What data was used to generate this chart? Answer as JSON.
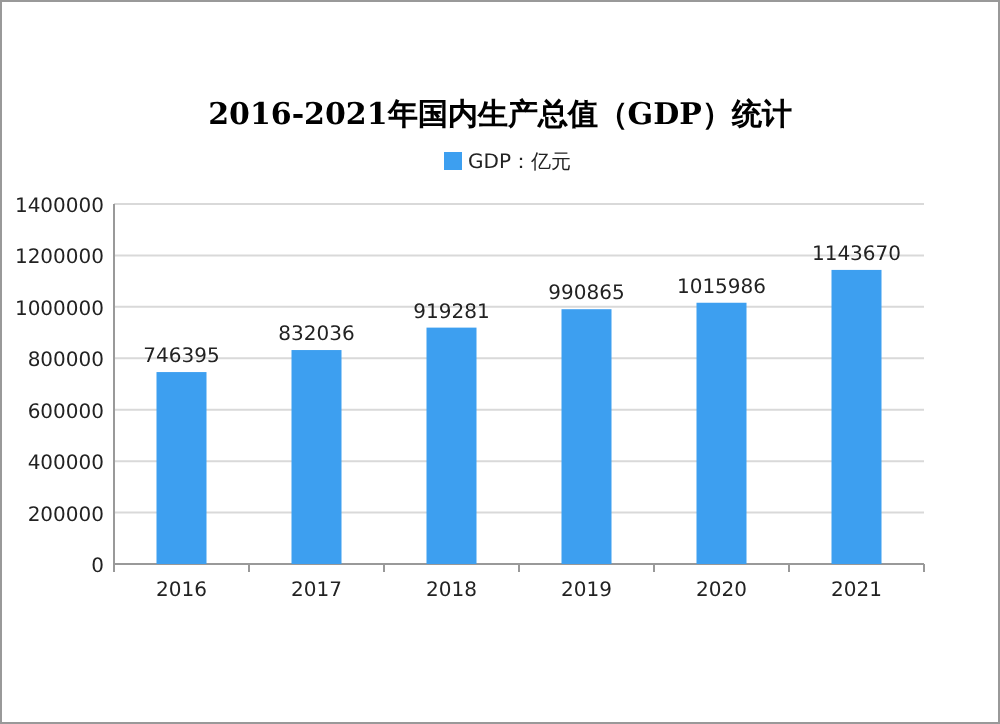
{
  "chart_data": {
    "type": "bar",
    "title": "2016-2021年国内生产总值（GDP）统计",
    "categories": [
      "2016",
      "2017",
      "2018",
      "2019",
      "2020",
      "2021"
    ],
    "series": [
      {
        "name": "GDP：亿元",
        "color": "#3d9ff0",
        "values": [
          746395,
          832036,
          919281,
          990865,
          1015986,
          1143670
        ]
      }
    ],
    "ylim": [
      0,
      1400000
    ],
    "yticks": [
      0,
      200000,
      400000,
      600000,
      800000,
      1000000,
      1200000,
      1400000
    ],
    "grid": "y",
    "legend": "top",
    "data_labels": true
  }
}
